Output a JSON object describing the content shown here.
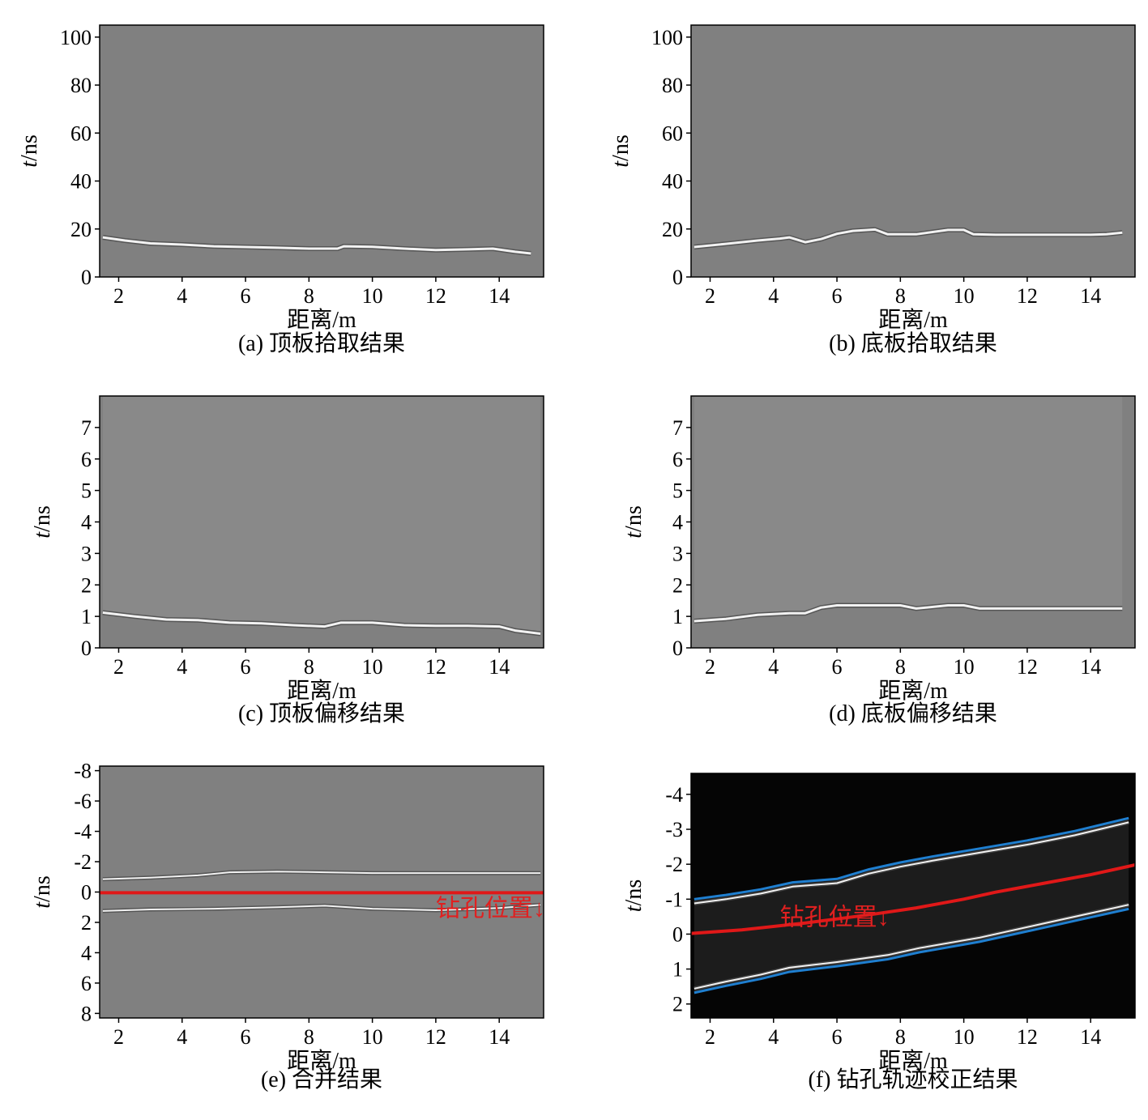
{
  "colors": {
    "gray_background": "#808080",
    "black_background": "#050505",
    "reflection_white": "#f2f2f2",
    "reflection_dark": "#4a4a4a",
    "boundary_blue": "#1f7fd0",
    "borehole_red": "#e01818",
    "annotation_red": "#e02020"
  },
  "chart_data": [
    {
      "id": "a",
      "type": "heatmap",
      "caption": "(a) 顶板拾取结果",
      "xlabel": "距离/m",
      "ylabel": "t/ns",
      "xlim": [
        1.4,
        15.4
      ],
      "ylim": [
        105,
        0
      ],
      "xticks": [
        "2",
        "4",
        "6",
        "8",
        "10",
        "12",
        "14"
      ],
      "yticks": [
        "0",
        "20",
        "40",
        "60",
        "80",
        "100"
      ],
      "background": "gray",
      "reflector_line": {
        "x": [
          1.5,
          2.2,
          3.0,
          4.0,
          5.0,
          6.0,
          7.0,
          8.0,
          8.9,
          9.1,
          10.0,
          11.0,
          12.0,
          13.0,
          13.8,
          14.5,
          15.0
        ],
        "y": [
          16.5,
          15.2,
          14.0,
          13.5,
          12.8,
          12.5,
          12.2,
          11.8,
          11.8,
          12.8,
          12.6,
          11.8,
          11.2,
          11.5,
          11.8,
          10.5,
          9.8
        ]
      }
    },
    {
      "id": "b",
      "type": "heatmap",
      "caption": "(b) 底板拾取结果",
      "xlabel": "距离/m",
      "ylabel": "t/ns",
      "xlim": [
        1.4,
        15.4
      ],
      "ylim": [
        105,
        0
      ],
      "xticks": [
        "2",
        "4",
        "6",
        "8",
        "10",
        "12",
        "14"
      ],
      "yticks": [
        "0",
        "20",
        "40",
        "60",
        "80",
        "100"
      ],
      "background": "gray",
      "reflector_line": {
        "x": [
          1.5,
          2.5,
          3.5,
          4.2,
          4.5,
          5.0,
          5.5,
          6.0,
          6.5,
          7.2,
          7.6,
          8.5,
          9.5,
          10.0,
          10.3,
          11.0,
          12.0,
          13.0,
          14.0,
          14.5,
          15.0
        ],
        "y": [
          12.5,
          13.8,
          15.2,
          16.0,
          16.5,
          14.5,
          15.8,
          18.0,
          19.2,
          19.8,
          17.8,
          17.8,
          19.6,
          19.6,
          17.8,
          17.6,
          17.6,
          17.6,
          17.6,
          17.8,
          18.5
        ]
      }
    },
    {
      "id": "c",
      "type": "heatmap",
      "caption": "(c) 顶板偏移结果",
      "xlabel": "距离/m",
      "ylabel": "t/ns",
      "xlim": [
        1.4,
        15.4
      ],
      "ylim": [
        8,
        0
      ],
      "xticks": [
        "2",
        "4",
        "6",
        "8",
        "10",
        "12",
        "14"
      ],
      "yticks": [
        "0",
        "1",
        "2",
        "3",
        "4",
        "5",
        "6",
        "7"
      ],
      "background": "gray",
      "reflector_line": {
        "x": [
          1.5,
          2.5,
          3.5,
          4.5,
          5.5,
          6.5,
          7.5,
          8.5,
          9.0,
          10.0,
          11.0,
          12.0,
          13.0,
          14.0,
          14.5,
          15.3
        ],
        "y": [
          1.12,
          1.0,
          0.9,
          0.88,
          0.8,
          0.78,
          0.72,
          0.68,
          0.8,
          0.8,
          0.72,
          0.7,
          0.7,
          0.68,
          0.55,
          0.45
        ]
      }
    },
    {
      "id": "d",
      "type": "heatmap",
      "caption": "(d) 底板偏移结果",
      "xlabel": "距离/m",
      "ylabel": "t/ns",
      "xlim": [
        1.4,
        15.4
      ],
      "ylim": [
        8,
        0
      ],
      "xticks": [
        "2",
        "4",
        "6",
        "8",
        "10",
        "12",
        "14"
      ],
      "yticks": [
        "0",
        "1",
        "2",
        "3",
        "4",
        "5",
        "6",
        "7"
      ],
      "background": "gray",
      "reflector_line": {
        "x": [
          1.5,
          2.5,
          3.5,
          4.5,
          5.0,
          5.5,
          6.0,
          7.0,
          8.0,
          8.5,
          9.5,
          10.0,
          10.5,
          11.5,
          12.5,
          13.5,
          14.5,
          15.0
        ],
        "y": [
          0.85,
          0.92,
          1.05,
          1.1,
          1.1,
          1.28,
          1.35,
          1.35,
          1.35,
          1.25,
          1.35,
          1.35,
          1.25,
          1.25,
          1.25,
          1.25,
          1.25,
          1.25
        ]
      }
    },
    {
      "id": "e",
      "type": "heatmap",
      "caption": "(e) 合并结果",
      "xlabel": "距离/m",
      "ylabel": "t/ns",
      "xlim": [
        1.4,
        15.4
      ],
      "ylim": [
        -8.3,
        8.3
      ],
      "xticks": [
        "2",
        "4",
        "6",
        "8",
        "10",
        "12",
        "14"
      ],
      "yticks": [
        "8",
        "6",
        "4",
        "2",
        "0",
        "-2",
        "-4",
        "-6",
        "-8"
      ],
      "background": "gray",
      "annotation": "钻孔位置↓",
      "annotation_x": 12.0,
      "annotation_y": 1.6,
      "upper_reflector": {
        "x": [
          1.5,
          3.0,
          5.0,
          7.0,
          8.5,
          10.0,
          12.0,
          14.0,
          15.3
        ],
        "y": [
          1.25,
          1.15,
          1.1,
          1.0,
          0.9,
          1.1,
          1.2,
          1.05,
          0.85
        ]
      },
      "lower_reflector": {
        "x": [
          1.5,
          3.0,
          4.5,
          5.5,
          7.0,
          8.5,
          10.0,
          11.0,
          12.5,
          14.0,
          15.3
        ],
        "y": [
          -0.85,
          -0.95,
          -1.1,
          -1.3,
          -1.35,
          -1.3,
          -1.25,
          -1.25,
          -1.25,
          -1.25,
          -1.25
        ]
      },
      "borehole_line": {
        "x": [
          1.4,
          15.4
        ],
        "y": [
          0.05,
          0.05
        ]
      }
    },
    {
      "id": "f",
      "type": "heatmap",
      "caption": "(f) 钻孔轨迹校正结果",
      "xlabel": "距离/m",
      "ylabel": "t/ns",
      "xlim": [
        1.4,
        15.4
      ],
      "ylim": [
        -4.6,
        2.4
      ],
      "xticks": [
        "2",
        "4",
        "6",
        "8",
        "10",
        "12",
        "14"
      ],
      "yticks": [
        "2",
        "1",
        "0",
        "-1",
        "-2",
        "-3",
        "-4"
      ],
      "background": "black",
      "annotation": "钻孔位置↓",
      "annotation_x": 4.2,
      "annotation_y": -0.25,
      "upper_boundary": {
        "x": [
          1.5,
          2.5,
          3.6,
          4.5,
          6.0,
          7.6,
          8.6,
          10.5,
          12.5,
          14.0,
          15.2
        ],
        "y": [
          1.68,
          1.48,
          1.28,
          1.08,
          0.92,
          0.72,
          0.52,
          0.22,
          -0.18,
          -0.48,
          -0.72
        ]
      },
      "lower_boundary": {
        "x": [
          1.5,
          2.5,
          3.6,
          4.6,
          6.0,
          7.0,
          8.0,
          9.0,
          10.5,
          12.0,
          13.5,
          15.2
        ],
        "y": [
          -1.0,
          -1.12,
          -1.28,
          -1.48,
          -1.58,
          -1.85,
          -2.05,
          -2.22,
          -2.45,
          -2.68,
          -2.95,
          -3.32
        ]
      },
      "borehole_line": {
        "x": [
          1.4,
          3.0,
          5.0,
          7.0,
          8.5,
          10.0,
          11.0,
          12.5,
          14.0,
          15.4
        ],
        "y": [
          -0.02,
          -0.12,
          -0.32,
          -0.55,
          -0.75,
          -1.0,
          -1.2,
          -1.45,
          -1.7,
          -1.98
        ]
      }
    }
  ]
}
